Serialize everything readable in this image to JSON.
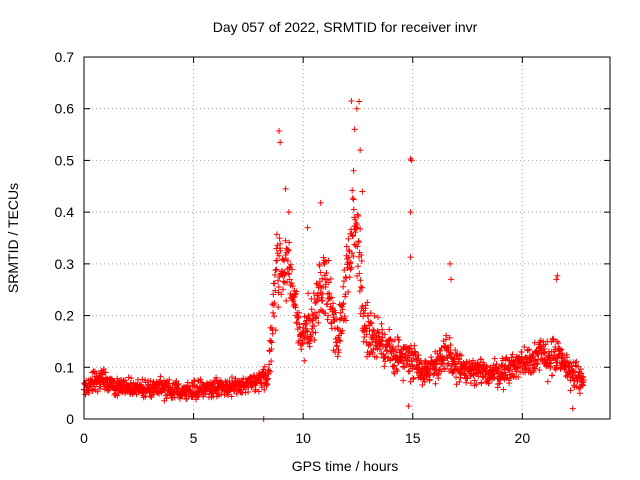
{
  "chart_data": {
    "type": "scatter",
    "title": "Day 057 of 2022, SRMTID for receiver invr",
    "xlabel": "GPS time / hours",
    "ylabel": "SRMTID / TECUs",
    "xlim": [
      0,
      24
    ],
    "ylim": [
      0,
      0.7
    ],
    "xticks": [
      0,
      5,
      10,
      15,
      20
    ],
    "xtick_labels": [
      "0",
      "5",
      "10",
      "15",
      "20"
    ],
    "yticks": [
      0,
      0.1,
      0.2,
      0.3,
      0.4,
      0.5,
      0.6,
      0.7
    ],
    "ytick_labels": [
      "0",
      "0.1",
      "0.2",
      "0.3",
      "0.4",
      "0.5",
      "0.6",
      "0.7"
    ],
    "grid": true,
    "marker": "+",
    "color": "#ff0000",
    "series": [
      {
        "name": "SRMTID",
        "profile": [
          [
            0.0,
            0.06,
            0.025
          ],
          [
            0.8,
            0.08,
            0.035
          ],
          [
            1.5,
            0.06,
            0.025
          ],
          [
            3.0,
            0.06,
            0.025
          ],
          [
            5.0,
            0.055,
            0.025
          ],
          [
            6.0,
            0.06,
            0.025
          ],
          [
            7.5,
            0.065,
            0.025
          ],
          [
            8.4,
            0.08,
            0.03
          ],
          [
            8.8,
            0.3,
            0.12
          ],
          [
            9.3,
            0.3,
            0.09
          ],
          [
            9.9,
            0.15,
            0.06
          ],
          [
            10.5,
            0.2,
            0.08
          ],
          [
            11.0,
            0.28,
            0.09
          ],
          [
            11.6,
            0.15,
            0.07
          ],
          [
            12.0,
            0.28,
            0.1
          ],
          [
            12.4,
            0.4,
            0.12
          ],
          [
            12.8,
            0.18,
            0.08
          ],
          [
            13.5,
            0.14,
            0.06
          ],
          [
            14.5,
            0.12,
            0.05
          ],
          [
            15.0,
            0.12,
            0.06
          ],
          [
            15.5,
            0.09,
            0.03
          ],
          [
            16.5,
            0.12,
            0.06
          ],
          [
            17.5,
            0.09,
            0.04
          ],
          [
            19.0,
            0.09,
            0.04
          ],
          [
            20.5,
            0.12,
            0.05
          ],
          [
            21.5,
            0.12,
            0.06
          ],
          [
            22.8,
            0.07,
            0.03
          ]
        ],
        "outliers": [
          [
            8.9,
            0.557
          ],
          [
            8.95,
            0.535
          ],
          [
            9.2,
            0.445
          ],
          [
            9.35,
            0.4
          ],
          [
            10.8,
            0.418
          ],
          [
            12.2,
            0.615
          ],
          [
            12.45,
            0.6
          ],
          [
            12.55,
            0.614
          ],
          [
            12.35,
            0.56
          ],
          [
            12.6,
            0.52
          ],
          [
            12.3,
            0.48
          ],
          [
            12.7,
            0.44
          ],
          [
            14.9,
            0.503
          ],
          [
            14.95,
            0.5
          ],
          [
            14.9,
            0.4
          ],
          [
            14.9,
            0.313
          ],
          [
            16.7,
            0.3
          ],
          [
            16.75,
            0.27
          ],
          [
            21.6,
            0.277
          ],
          [
            21.55,
            0.27
          ],
          [
            8.2,
            0.0
          ],
          [
            14.8,
            0.025
          ],
          [
            22.3,
            0.02
          ],
          [
            10.2,
            0.37
          ]
        ]
      }
    ]
  }
}
